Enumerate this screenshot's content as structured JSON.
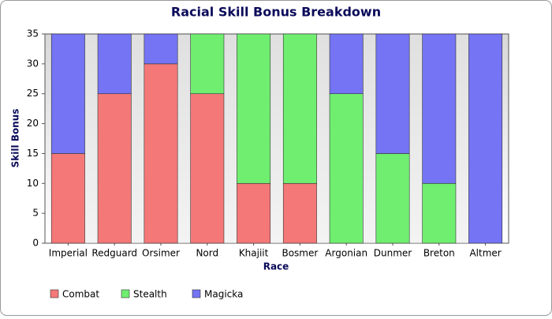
{
  "chart_data": {
    "type": "stacked-bar",
    "title": "Racial Skill Bonus Breakdown",
    "x_label": "Race",
    "y_label": "Skill Bonus",
    "categories": [
      "Imperial",
      "Redguard",
      "Orsimer",
      "Nord",
      "Khajiit",
      "Bosmer",
      "Argonian",
      "Dunmer",
      "Breton",
      "Altmer"
    ],
    "series": [
      {
        "name": "Combat",
        "color": "#f47878",
        "values": [
          15,
          25,
          30,
          25,
          10,
          10,
          0,
          0,
          0,
          0
        ]
      },
      {
        "name": "Stealth",
        "color": "#70ee70",
        "values": [
          0,
          0,
          0,
          10,
          25,
          25,
          25,
          15,
          10,
          0
        ]
      },
      {
        "name": "Magicka",
        "color": "#7474f4",
        "values": [
          20,
          10,
          5,
          0,
          0,
          0,
          10,
          20,
          25,
          35
        ]
      }
    ],
    "ylim": [
      0,
      35
    ],
    "yticks": [
      0,
      5,
      10,
      15,
      20,
      25,
      30,
      35
    ],
    "legend": "bottom-left"
  }
}
